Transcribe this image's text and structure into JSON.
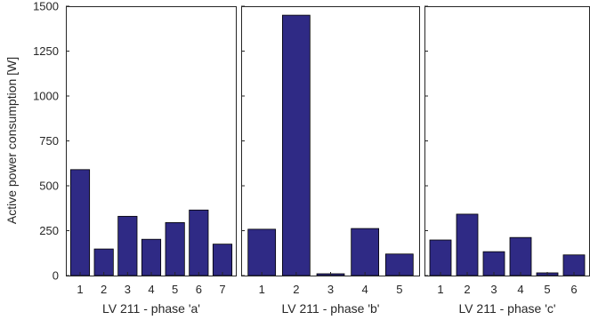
{
  "chart_data": {
    "type": "bar",
    "ylabel": "Active power consumption [W]",
    "ylim": [
      0,
      1500
    ],
    "yticks": [
      0,
      250,
      500,
      750,
      1000,
      1250,
      1500
    ],
    "bar_color": "#2f2a85",
    "grid": false,
    "panels": [
      {
        "xlabel": "LV 211 - phase 'a'",
        "categories": [
          "1",
          "2",
          "3",
          "4",
          "5",
          "6",
          "7"
        ],
        "values": [
          590,
          148,
          330,
          202,
          295,
          365,
          175
        ]
      },
      {
        "xlabel": "LV 211 - phase 'b'",
        "categories": [
          "1",
          "2",
          "3",
          "4",
          "5"
        ],
        "values": [
          258,
          1450,
          10,
          262,
          120
        ]
      },
      {
        "xlabel": "LV 211 - phase 'c'",
        "categories": [
          "1",
          "2",
          "3",
          "4",
          "5",
          "6"
        ],
        "values": [
          198,
          342,
          133,
          212,
          15,
          115
        ]
      }
    ]
  }
}
